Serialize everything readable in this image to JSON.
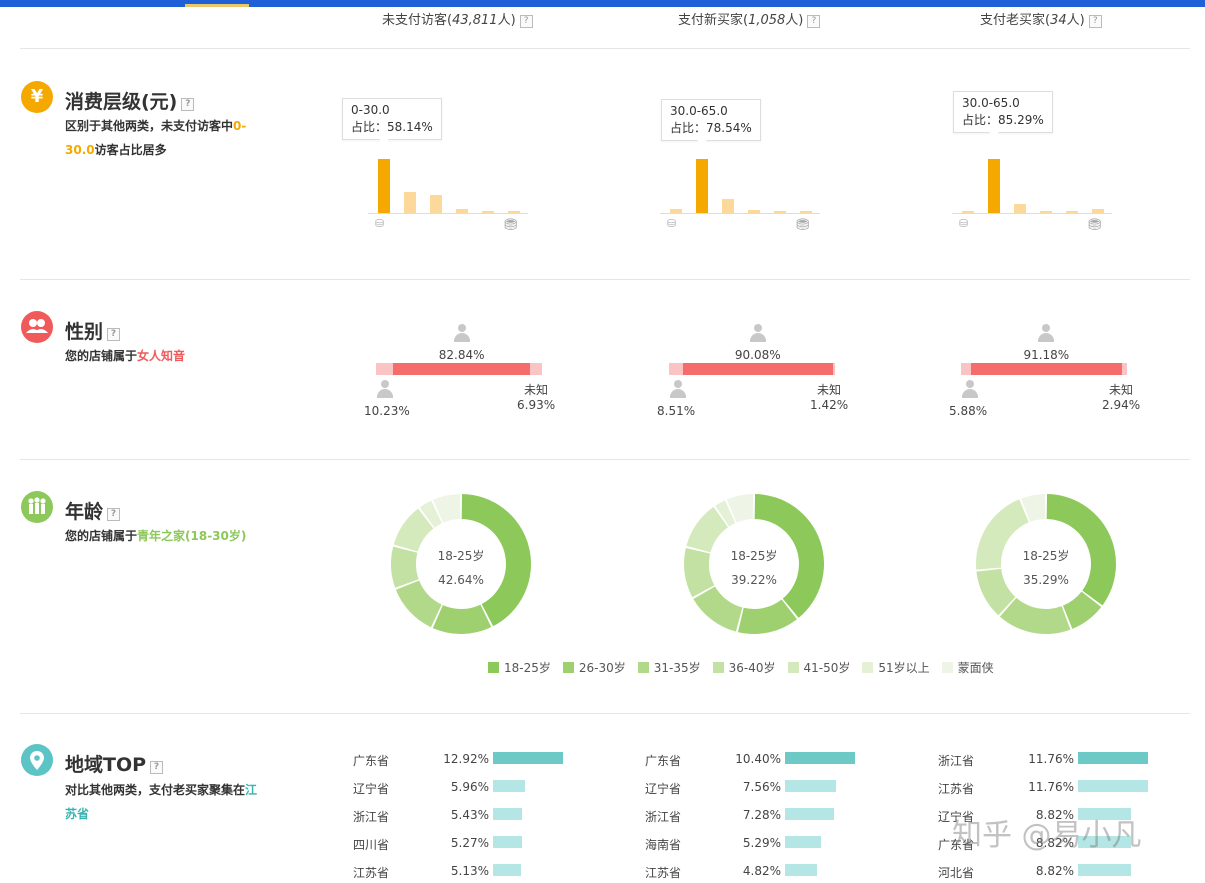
{
  "columns": [
    {
      "label": "未支付访客(",
      "count": "43,811",
      "unit": "人)"
    },
    {
      "label": "支付新买家(",
      "count": "1,058",
      "unit": "人)"
    },
    {
      "label": "支付老买家(",
      "count": "34",
      "unit": "人)"
    }
  ],
  "help_mark": "?",
  "sections": {
    "spend": {
      "icon": "¥",
      "title": "消费层级(元)",
      "desc_pre": "区别于其他两类，未支付访客中",
      "desc_hl": "0-30.0",
      "desc_post": "访客占比居多",
      "accent": "#f5a800"
    },
    "gender": {
      "title": "性别",
      "desc_pre": "您的店铺属于",
      "desc_hl": "女人知音",
      "accent": "#f05a5a"
    },
    "age": {
      "title": "年龄",
      "desc_pre": "您的店铺属于",
      "desc_hl": "青年之家(18-30岁)",
      "accent": "#8cc85a"
    },
    "region": {
      "title": "地域TOP",
      "desc_pre": "对比其他两类，支付老买家聚集在",
      "desc_hl": "江苏省",
      "accent": "#3ab3b3"
    }
  },
  "chart_data": [
    {
      "type": "bar",
      "title": "未支付访客 消费层级",
      "values": [
        1.0,
        0.38,
        0.33,
        0.07,
        0.04,
        0.04
      ],
      "highlight_index": 0,
      "tooltip_range": "0-30.0",
      "tooltip_pct": "占比：58.14%"
    },
    {
      "type": "bar",
      "title": "支付新买家 消费层级",
      "values": [
        0.08,
        1.0,
        0.25,
        0.05,
        0.04,
        0.04
      ],
      "highlight_index": 1,
      "tooltip_range": "30.0-65.0",
      "tooltip_pct": "占比：78.54%"
    },
    {
      "type": "bar",
      "title": "支付老买家 消费层级",
      "values": [
        0.04,
        1.0,
        0.17,
        0.04,
        0.04,
        0.07
      ],
      "highlight_index": 1,
      "tooltip_range": "30.0-65.0",
      "tooltip_pct": "占比：85.29%"
    }
  ],
  "gender_data": [
    {
      "female_pct": "82.84%",
      "male_pct": "10.23%",
      "unknown_pct": "6.93%",
      "female": 82.84,
      "male": 10.23,
      "unknown": 6.93
    },
    {
      "female_pct": "90.08%",
      "male_pct": "8.51%",
      "unknown_pct": "1.42%",
      "female": 90.08,
      "male": 8.51,
      "unknown": 1.42
    },
    {
      "female_pct": "91.18%",
      "male_pct": "5.88%",
      "unknown_pct": "2.94%",
      "female": 91.18,
      "male": 5.88,
      "unknown": 2.94
    }
  ],
  "gender_unknown_label": "未知",
  "gender_colors": {
    "female": "#f56c6c",
    "male": "#fbc4c4",
    "unknown": "#fbc4c4"
  },
  "age_data": [
    {
      "center_label": "18-25岁",
      "center_pct": "42.64%",
      "values": [
        42.64,
        14.2,
        12.4,
        10.0,
        10.5,
        3.5,
        6.76
      ]
    },
    {
      "center_label": "18-25岁",
      "center_pct": "39.22%",
      "values": [
        39.22,
        14.7,
        13.0,
        12.0,
        11.5,
        3.0,
        6.58
      ]
    },
    {
      "center_label": "18-25岁",
      "center_pct": "35.29%",
      "values": [
        35.29,
        8.8,
        17.6,
        11.8,
        20.5,
        0.0,
        6.01
      ]
    }
  ],
  "age_legend": [
    {
      "label": "18-25岁",
      "color": "#8cc85a"
    },
    {
      "label": "26-30岁",
      "color": "#9fd070"
    },
    {
      "label": "31-35岁",
      "color": "#b2d98a"
    },
    {
      "label": "36-40岁",
      "color": "#c3e1a3"
    },
    {
      "label": "41-50岁",
      "color": "#d4eabd"
    },
    {
      "label": "51岁以上",
      "color": "#e5f1d7"
    },
    {
      "label": "蒙面侠",
      "color": "#eef5e6"
    }
  ],
  "region_data": [
    [
      {
        "name": "广东省",
        "pct": "12.92%",
        "v": 12.92
      },
      {
        "name": "辽宁省",
        "pct": "5.96%",
        "v": 5.96
      },
      {
        "name": "浙江省",
        "pct": "5.43%",
        "v": 5.43
      },
      {
        "name": "四川省",
        "pct": "5.27%",
        "v": 5.27
      },
      {
        "name": "江苏省",
        "pct": "5.13%",
        "v": 5.13
      }
    ],
    [
      {
        "name": "广东省",
        "pct": "10.40%",
        "v": 10.4
      },
      {
        "name": "辽宁省",
        "pct": "7.56%",
        "v": 7.56
      },
      {
        "name": "浙江省",
        "pct": "7.28%",
        "v": 7.28
      },
      {
        "name": "海南省",
        "pct": "5.29%",
        "v": 5.29
      },
      {
        "name": "江苏省",
        "pct": "4.82%",
        "v": 4.82
      }
    ],
    [
      {
        "name": "浙江省",
        "pct": "11.76%",
        "v": 11.76
      },
      {
        "name": "江苏省",
        "pct": "11.76%",
        "v": 11.76
      },
      {
        "name": "辽宁省",
        "pct": "8.82%",
        "v": 8.82
      },
      {
        "name": "广东省",
        "pct": "8.82%",
        "v": 8.82
      },
      {
        "name": "河北省",
        "pct": "8.82%",
        "v": 8.82
      }
    ]
  ],
  "region_colors": {
    "top": "#6cc9c6",
    "rest": "#b3e6e4"
  },
  "watermark": "知乎 @易小凡"
}
